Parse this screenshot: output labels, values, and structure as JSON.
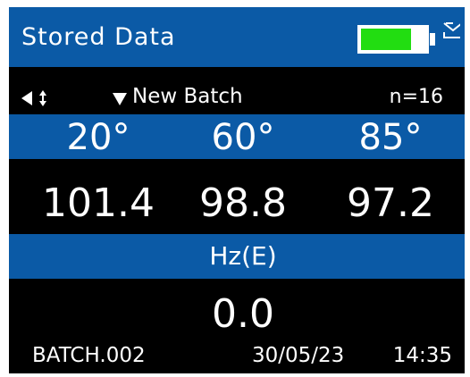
{
  "header": {
    "title": "Stored Data"
  },
  "info": {
    "batch_name": "New Batch",
    "count": "n=16"
  },
  "angles": [
    "20°",
    "60°",
    "85°"
  ],
  "readings": [
    "101.4",
    "98.8",
    "97.2"
  ],
  "haze": {
    "label": "Hz(E)",
    "value": "0.0"
  },
  "footer": {
    "file": "BATCH.002",
    "date": "30/05/23",
    "time": "14:35"
  }
}
